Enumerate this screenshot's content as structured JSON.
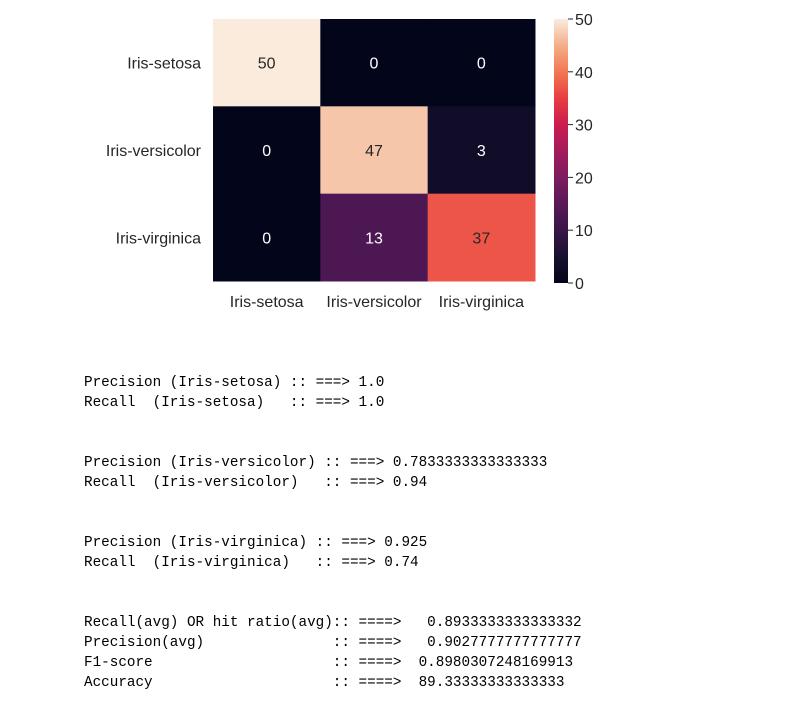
{
  "chart_data": {
    "type": "heatmap",
    "title": "",
    "xlabel": "",
    "ylabel": "",
    "x_categories": [
      "Iris-setosa",
      "Iris-versicolor",
      "Iris-virginica"
    ],
    "y_categories": [
      "Iris-setosa",
      "Iris-versicolor",
      "Iris-virginica"
    ],
    "values": [
      [
        50,
        0,
        0
      ],
      [
        0,
        47,
        3
      ],
      [
        0,
        13,
        37
      ]
    ],
    "annotations": true,
    "colormap": "rocket",
    "colorbar": {
      "range": [
        0,
        50
      ],
      "ticks": [
        0,
        10,
        20,
        30,
        40,
        50
      ]
    }
  },
  "output": {
    "groups": [
      {
        "lines": [
          "Precision (Iris-setosa) :: ===> 1.0",
          "Recall  (Iris-setosa)   :: ===> 1.0"
        ]
      },
      {
        "lines": [
          "Precision (Iris-versicolor) :: ===> 0.7833333333333333",
          "Recall  (Iris-versicolor)   :: ===> 0.94"
        ]
      },
      {
        "lines": [
          "Precision (Iris-virginica) :: ===> 0.925",
          "Recall  (Iris-virginica)   :: ===> 0.74"
        ]
      },
      {
        "lines": [
          "Recall(avg) OR hit ratio(avg):: ====>   0.8933333333333332",
          "Precision(avg)               :: ====>   0.9027777777777777",
          "F1-score                     :: ====>  0.8980307248169913",
          "Accuracy                     :: ====>  89.33333333333333"
        ]
      }
    ]
  }
}
